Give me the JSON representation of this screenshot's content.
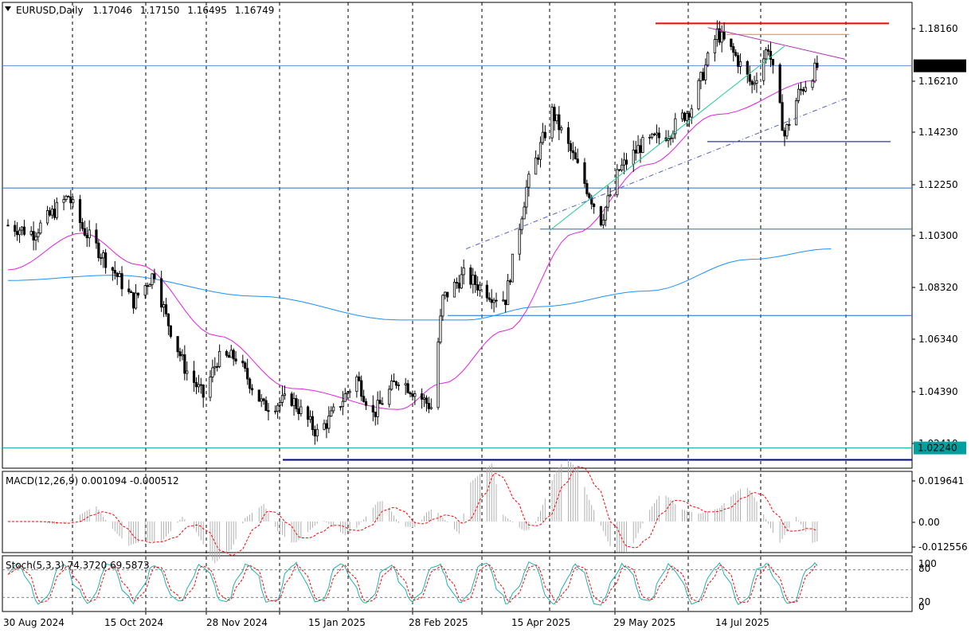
{
  "header": {
    "symbol": "EURUSD,Daily",
    "open": "1.17046",
    "high": "1.17150",
    "low": "1.16495",
    "close": "1.16749"
  },
  "price_axis": {
    "ticks": [
      "1.18160",
      "1.16210",
      "1.14230",
      "1.12250",
      "1.10300",
      "1.08320",
      "1.06340",
      "1.04390",
      "1.02410"
    ],
    "current_price_label": "1.16749",
    "low_line_label": "1.02240"
  },
  "macd": {
    "label": "MACD(12,26,9) 0.001094 -0.000512",
    "ticks": [
      "0.019641",
      "0.00",
      "-0.012556"
    ]
  },
  "stoch": {
    "label": "Stoch(5,3,3) 74.3720 69.5873",
    "ticks": [
      "100",
      "80",
      "20",
      "0"
    ]
  },
  "time_axis": {
    "labels": [
      "30 Aug 2024",
      "15 Oct 2024",
      "28 Nov 2024",
      "15 Jan 2025",
      "28 Feb 2025",
      "15 Apr 2025",
      "29 May 2025",
      "14 Jul 2025"
    ]
  },
  "colors": {
    "candle": "#000000",
    "ma_fast": "#e020e0",
    "ma_slow": "#1e90ff",
    "trend_green": "#20c997",
    "resistance_red": "#ff0000",
    "resistance_orange": "#ff7f27",
    "support_navy": "#00008b",
    "level_blue": "#1c6fd6",
    "level_cyan": "#00a0a0",
    "price_level": "#5b8fd0"
  },
  "chart_data": {
    "type": "candlestick",
    "symbol": "EURUSD",
    "timeframe": "Daily",
    "last_ohlc": {
      "open": 1.17046,
      "high": 1.1715,
      "low": 1.16495,
      "close": 1.16749
    },
    "ylim": [
      1.0145,
      1.1895
    ],
    "date_range": [
      "2024-08-30",
      "2025-07-30"
    ],
    "close_path": [
      [
        "2024-08-30",
        1.107
      ],
      [
        "2024-09-10",
        1.104
      ],
      [
        "2024-09-25",
        1.118
      ],
      [
        "2024-10-01",
        1.106
      ],
      [
        "2024-10-15",
        1.089
      ],
      [
        "2024-10-23",
        1.078
      ],
      [
        "2024-11-01",
        1.089
      ],
      [
        "2024-11-06",
        1.072
      ],
      [
        "2024-11-14",
        1.053
      ],
      [
        "2024-11-22",
        1.042
      ],
      [
        "2024-11-28",
        1.056
      ],
      [
        "2024-12-06",
        1.057
      ],
      [
        "2024-12-18",
        1.038
      ],
      [
        "2024-12-30",
        1.041
      ],
      [
        "2025-01-10",
        1.028
      ],
      [
        "2025-01-15",
        1.033
      ],
      [
        "2025-01-27",
        1.049
      ],
      [
        "2025-02-03",
        1.035
      ],
      [
        "2025-02-14",
        1.049
      ],
      [
        "2025-02-28",
        1.038
      ],
      [
        "2025-03-05",
        1.079
      ],
      [
        "2025-03-14",
        1.088
      ],
      [
        "2025-03-27",
        1.08
      ],
      [
        "2025-04-01",
        1.079
      ],
      [
        "2025-04-10",
        1.121
      ],
      [
        "2025-04-21",
        1.15
      ],
      [
        "2025-04-30",
        1.133
      ],
      [
        "2025-05-12",
        1.109
      ],
      [
        "2025-05-20",
        1.128
      ],
      [
        "2025-05-29",
        1.137
      ],
      [
        "2025-06-10",
        1.142
      ],
      [
        "2025-06-20",
        1.152
      ],
      [
        "2025-07-01",
        1.18
      ],
      [
        "2025-07-09",
        1.171
      ],
      [
        "2025-07-16",
        1.16
      ],
      [
        "2025-07-23",
        1.175
      ],
      [
        "2025-07-30",
        1.141
      ],
      [
        "2025-08-05",
        1.157
      ],
      [
        "2025-08-13",
        1.167
      ]
    ],
    "moving_averages": [
      {
        "color": "#e020e0",
        "points": [
          [
            "2024-08-30",
            1.09
          ],
          [
            "2024-10-01",
            1.104
          ],
          [
            "2024-10-25",
            1.092
          ],
          [
            "2024-11-28",
            1.065
          ],
          [
            "2024-12-30",
            1.045
          ],
          [
            "2025-02-14",
            1.037
          ],
          [
            "2025-03-05",
            1.047
          ],
          [
            "2025-04-01",
            1.067
          ],
          [
            "2025-05-01",
            1.104
          ],
          [
            "2025-06-01",
            1.13
          ],
          [
            "2025-07-01",
            1.149
          ],
          [
            "2025-08-13",
            1.162
          ]
        ]
      },
      {
        "color": "#1e90ff",
        "points": [
          [
            "2024-08-30",
            1.086
          ],
          [
            "2024-10-15",
            1.088
          ],
          [
            "2024-12-15",
            1.08
          ],
          [
            "2025-02-14",
            1.071
          ],
          [
            "2025-03-15",
            1.071
          ],
          [
            "2025-04-15",
            1.076
          ],
          [
            "2025-06-01",
            1.082
          ],
          [
            "2025-07-15",
            1.094
          ],
          [
            "2025-08-19",
            1.098
          ]
        ]
      }
    ],
    "horizontal_levels": [
      {
        "price": 1.1836,
        "color": "#ff0000"
      },
      {
        "price": 1.1794,
        "color": "#ff7f27"
      },
      {
        "price": 1.1675,
        "color": "#5b8fd0"
      },
      {
        "price": 1.1387,
        "color": "#00008b"
      },
      {
        "price": 1.1211,
        "color": "#1c6fd6"
      },
      {
        "price": 1.1055,
        "color": "#1c6fd6"
      },
      {
        "price": 1.0727,
        "color": "#1c6fd6"
      },
      {
        "price": 1.0224,
        "color": "#00a0a0"
      },
      {
        "price": 1.0179,
        "color": "#00008b"
      }
    ],
    "trendlines": [
      {
        "from": [
          "2025-06-27",
          1.182
        ],
        "to": [
          "2025-08-25",
          1.17
        ],
        "color": "#b030b0"
      },
      {
        "from": [
          "2025-04-20",
          1.105
        ],
        "to": [
          "2025-07-30",
          1.175
        ],
        "color": "#20c997"
      },
      {
        "from": [
          "2025-03-15",
          1.098
        ],
        "to": [
          "2025-08-25",
          1.155
        ],
        "color": "#5060c0",
        "dashed": true
      }
    ],
    "macd": {
      "params": [
        12,
        26,
        9
      ],
      "main": 0.001094,
      "signal": -0.000512,
      "ylim": [
        -0.012556,
        0.019641
      ]
    },
    "stochastic": {
      "params": [
        5,
        3,
        3
      ],
      "k": 74.372,
      "d": 69.5873,
      "ylim": [
        0,
        100
      ],
      "levels": [
        80,
        20
      ]
    }
  }
}
